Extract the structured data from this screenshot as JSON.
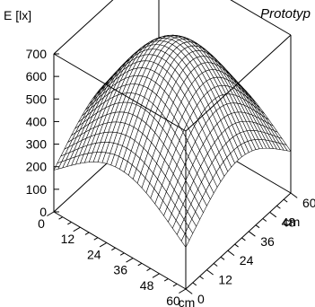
{
  "chart_data": {
    "type": "surface",
    "title": "Prototyp",
    "zlabel": "E [lx]",
    "xlabel": "cm",
    "ylabel": "cm",
    "z_ticks": [
      "0",
      "100",
      "200",
      "300",
      "400",
      "500",
      "600",
      "700"
    ],
    "x_ticks": [
      "0",
      "12",
      "24",
      "36",
      "48",
      "60"
    ],
    "y_ticks": [
      "0",
      "12",
      "24",
      "36",
      "48",
      "60"
    ],
    "x_range": [
      0,
      60
    ],
    "y_range": [
      0,
      60
    ],
    "z_range": [
      0,
      700
    ],
    "surface": {
      "peak_value": 700,
      "peak_at": [
        30,
        30
      ],
      "corner_value": 185,
      "shape": "gaussian-like"
    }
  }
}
